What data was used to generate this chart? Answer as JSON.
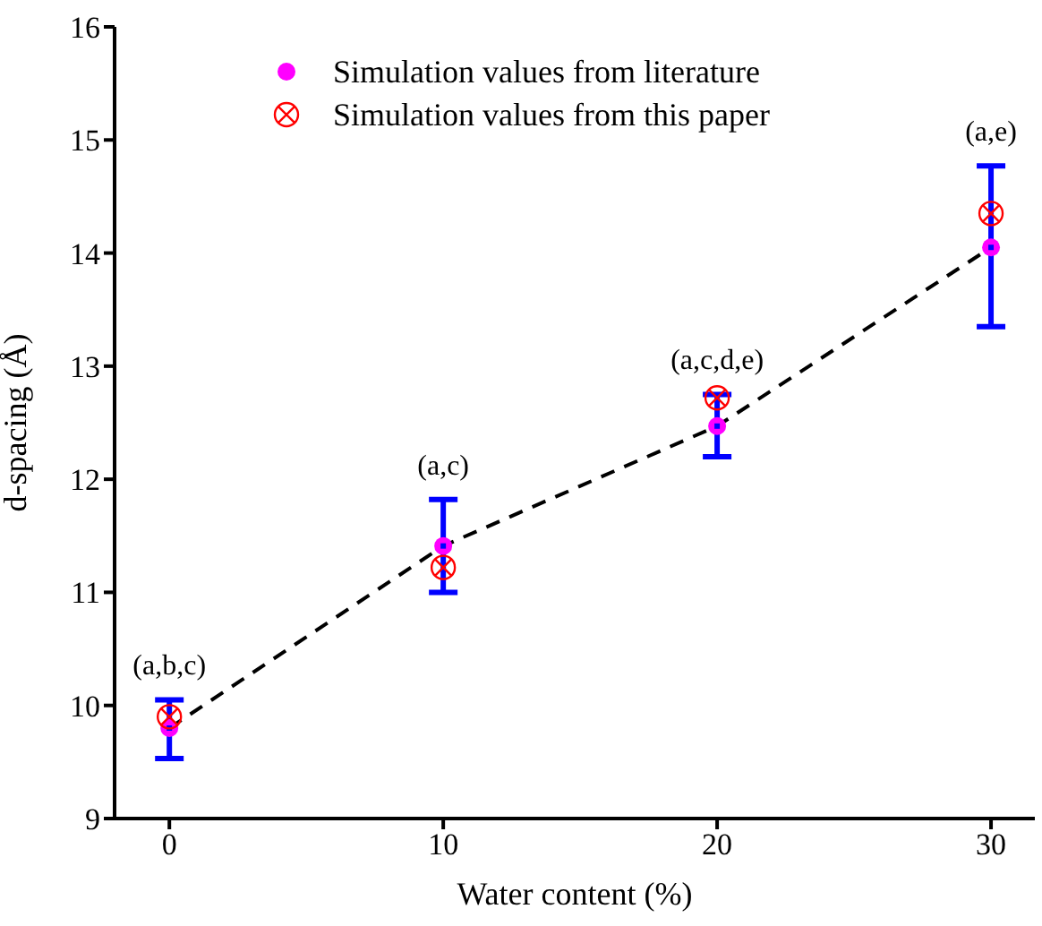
{
  "chart_data": {
    "type": "scatter",
    "xlabel": "Water content (%)",
    "ylabel": "d-spacing (Å)",
    "x": [
      0,
      10,
      20,
      30
    ],
    "xlim": [
      -2,
      31.6
    ],
    "xticks": [
      0,
      10,
      20,
      30
    ],
    "ylim": [
      9,
      16
    ],
    "yticks": [
      9,
      10,
      11,
      12,
      13,
      14,
      15,
      16
    ],
    "legend": "top",
    "series": [
      {
        "type": "line",
        "color": "#000000",
        "line_style": "dashed",
        "marker": "none",
        "values": [
          9.8,
          11.41,
          12.47,
          14.05
        ]
      },
      {
        "name": "Simulation values from literature",
        "color": "#ff00ff",
        "marker": "circle",
        "values": [
          9.8,
          11.41,
          12.47,
          14.05
        ]
      },
      {
        "color": "#0000ff",
        "marker": "square",
        "values": [
          9.8,
          11.41,
          12.47,
          14.05
        ],
        "errors": [
          [
            9.53,
            10.05
          ],
          [
            11.0,
            11.82
          ],
          [
            12.2,
            12.75
          ],
          [
            13.35,
            14.77
          ]
        ]
      },
      {
        "name": "Simulation values from this paper",
        "color": "#ff0000",
        "marker": "cross",
        "values": [
          9.9,
          11.22,
          12.72,
          14.35
        ]
      }
    ],
    "annotations": [
      "(a,b,c)",
      "(a,c)",
      "(a,c,d,e)",
      "(a,e)"
    ]
  }
}
